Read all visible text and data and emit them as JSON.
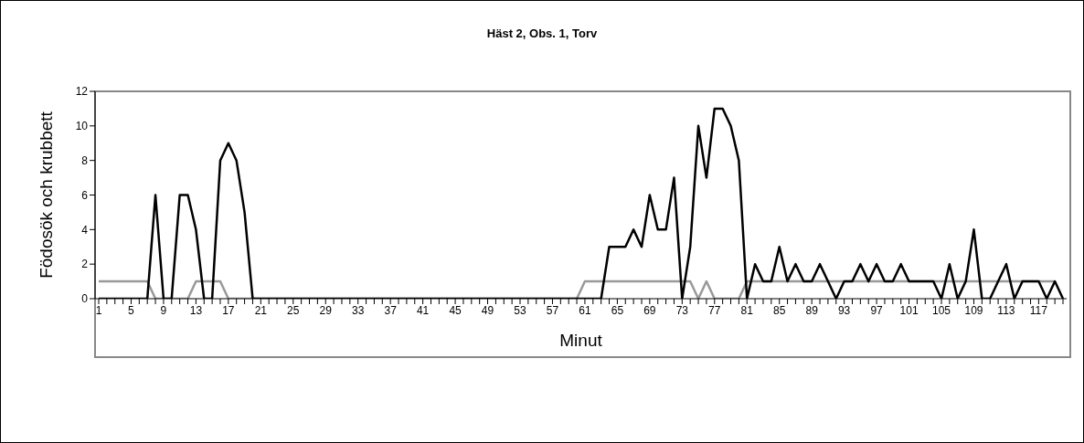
{
  "chart_data": {
    "type": "line",
    "title": "Häst 2, Obs. 1, Torv",
    "xlabel": "Minut",
    "ylabel": "Födosök och krubbett",
    "categories": [
      "1",
      null,
      null,
      null,
      "5",
      null,
      null,
      null,
      "9",
      null,
      null,
      null,
      "13",
      null,
      null,
      null,
      "17",
      null,
      null,
      null,
      "21",
      null,
      null,
      null,
      "25",
      null,
      null,
      null,
      "29",
      null,
      null,
      null,
      "33",
      null,
      null,
      null,
      "37",
      null,
      null,
      null,
      "41",
      null,
      null,
      null,
      "45",
      null,
      null,
      null,
      "49",
      null,
      null,
      null,
      "53",
      null,
      null,
      null,
      "57",
      null,
      null,
      null,
      "61",
      null,
      null,
      null,
      "65",
      null,
      null,
      null,
      "69",
      null,
      null,
      null,
      "73",
      null,
      null,
      null,
      "77",
      null,
      null,
      null,
      "81",
      null,
      null,
      null,
      "85",
      null,
      null,
      null,
      "89",
      null,
      null,
      null,
      "93",
      null,
      null,
      null,
      "97",
      null,
      null,
      null,
      "101",
      null,
      null,
      null,
      "105",
      null,
      null,
      null,
      "109",
      null,
      null,
      null,
      "113",
      null,
      null,
      null,
      "117",
      null,
      null,
      null
    ],
    "series": [
      {
        "color": "#999999",
        "values": [
          1,
          1,
          1,
          1,
          1,
          1,
          1,
          0,
          0,
          0,
          0,
          0,
          1,
          1,
          1,
          1,
          0,
          0,
          0,
          0,
          0,
          0,
          0,
          0,
          0,
          0,
          0,
          0,
          0,
          0,
          0,
          0,
          0,
          0,
          0,
          0,
          0,
          0,
          0,
          0,
          0,
          0,
          0,
          0,
          0,
          0,
          0,
          0,
          0,
          0,
          0,
          0,
          0,
          0,
          0,
          0,
          0,
          0,
          0,
          0,
          1,
          1,
          1,
          1,
          1,
          1,
          1,
          1,
          1,
          1,
          1,
          1,
          1,
          1,
          0,
          1,
          0,
          0,
          0,
          0,
          1,
          1,
          1,
          1,
          1,
          1,
          1,
          1,
          1,
          1,
          1,
          1,
          1,
          1,
          1,
          1,
          1,
          1,
          1,
          1,
          1,
          1,
          1,
          1,
          1,
          1,
          1,
          1,
          1,
          1,
          1,
          1,
          1,
          1,
          1,
          1,
          1,
          1,
          1,
          null
        ]
      },
      {
        "color": "#000000",
        "values": [
          0,
          0,
          0,
          0,
          0,
          0,
          0,
          6,
          0,
          0,
          6,
          6,
          4,
          0,
          0,
          8,
          9,
          8,
          5,
          0,
          0,
          0,
          0,
          0,
          0,
          0,
          0,
          0,
          0,
          0,
          0,
          0,
          0,
          0,
          0,
          0,
          0,
          0,
          0,
          0,
          0,
          0,
          0,
          0,
          0,
          0,
          0,
          0,
          0,
          0,
          0,
          0,
          0,
          0,
          0,
          0,
          0,
          0,
          0,
          0,
          0,
          0,
          0,
          3,
          3,
          3,
          4,
          3,
          6,
          4,
          4,
          7,
          0,
          3,
          10,
          7,
          11,
          11,
          10,
          8,
          0,
          2,
          1,
          1,
          3,
          1,
          2,
          1,
          1,
          2,
          1,
          0,
          1,
          1,
          2,
          1,
          2,
          1,
          1,
          2,
          1,
          1,
          1,
          1,
          0,
          2,
          0,
          1,
          4,
          0,
          0,
          1,
          2,
          0,
          1,
          1,
          1,
          0,
          1,
          0
        ]
      }
    ],
    "ylim": [
      0,
      12
    ],
    "yticks": [
      0,
      2,
      4,
      6,
      8,
      10,
      12
    ],
    "grid": false,
    "legend": false,
    "marker": "none",
    "line_style": "solid"
  }
}
